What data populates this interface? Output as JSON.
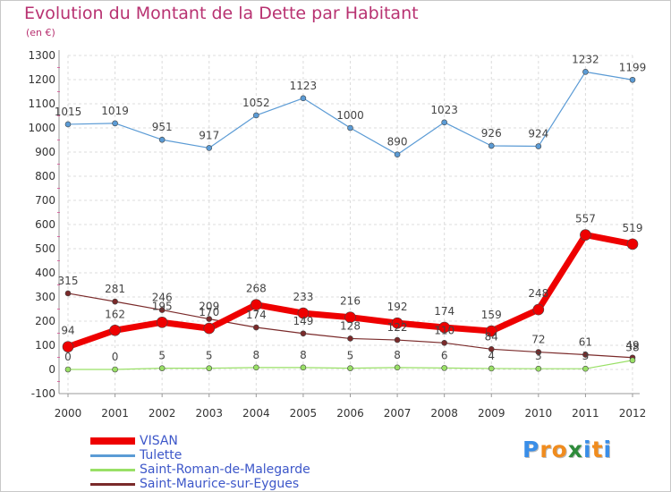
{
  "header": {
    "title": "Evolution du Montant de la Dette par Habitant",
    "subtitle": "(en €)"
  },
  "logo": {
    "text": "Proxiti",
    "letters": [
      "P",
      "r",
      "o",
      "x",
      "i",
      "t",
      "i"
    ],
    "colors": [
      "#3a8ee8",
      "#f08c1e",
      "#f08c1e",
      "#2e8b3b",
      "#3a8ee8",
      "#f08c1e",
      "#3a8ee8"
    ]
  },
  "chart_data": {
    "type": "line",
    "title": "Evolution du Montant de la Dette par Habitant",
    "subtitle": "(en €)",
    "xlabel": "",
    "ylabel": "",
    "ylim": [
      -100,
      1300
    ],
    "yticks": [
      -100,
      0,
      100,
      200,
      300,
      400,
      500,
      600,
      700,
      800,
      900,
      1000,
      1100,
      1200,
      1300
    ],
    "categories": [
      "2000",
      "2001",
      "2002",
      "2003",
      "2004",
      "2005",
      "2006",
      "2007",
      "2008",
      "2009",
      "2010",
      "2011",
      "2012"
    ],
    "grid": true,
    "legend_position": "bottom-left",
    "series": [
      {
        "name": "Tulette",
        "color": "#5b9bd5",
        "values": [
          1015,
          1019,
          951,
          917,
          1052,
          1123,
          1000,
          890,
          1023,
          926,
          924,
          1232,
          1199
        ],
        "labels": [
          "1015",
          "1019",
          "951",
          "917",
          "1052",
          "1123",
          "1000",
          "890",
          "1023",
          "926",
          "924",
          "1232",
          "1199"
        ]
      },
      {
        "name": "Saint-Maurice-sur-Eygues",
        "color": "#7a2a2a",
        "values": [
          315,
          281,
          246,
          209,
          174,
          149,
          128,
          122,
          110,
          84,
          72,
          61,
          49
        ],
        "labels": [
          "315",
          "281",
          "246",
          "209",
          "174",
          "149",
          "128",
          "122",
          "110",
          "84",
          "72",
          "61",
          "49"
        ]
      },
      {
        "name": "Saint-Roman-de-Malegarde",
        "color": "#99e066",
        "values": [
          0,
          0,
          5,
          5,
          8,
          8,
          5,
          8,
          6,
          4,
          3,
          3,
          38
        ],
        "labels": [
          "0",
          "0",
          "5",
          "5",
          "8",
          "8",
          "5",
          "8",
          "6",
          "4",
          "3",
          "3",
          "38"
        ]
      },
      {
        "name": "VISAN",
        "color": "#ee0000",
        "values": [
          94,
          162,
          195,
          170,
          268,
          233,
          216,
          192,
          174,
          159,
          248,
          557,
          519
        ],
        "labels": [
          "94",
          "162",
          "195",
          "170",
          "268",
          "233",
          "216",
          "192",
          "174",
          "159",
          "248",
          "557",
          "519"
        ]
      }
    ],
    "legend_order": [
      "VISAN",
      "Tulette",
      "Saint-Roman-de-Malegarde",
      "Saint-Maurice-sur-Eygues"
    ]
  }
}
